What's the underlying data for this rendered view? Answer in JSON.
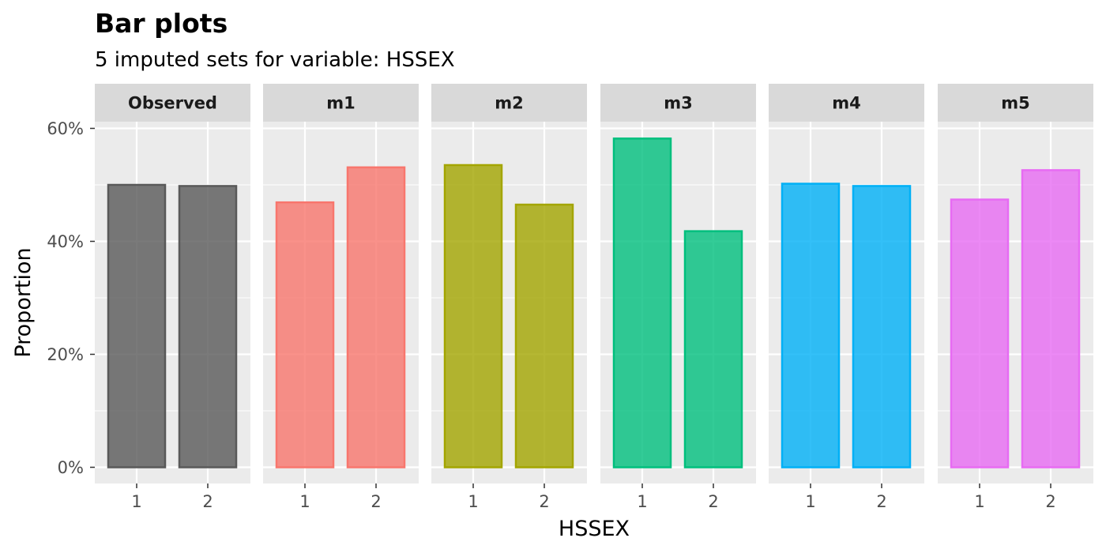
{
  "chart_data": {
    "type": "bar",
    "title": "Bar plots",
    "subtitle": "5  imputed sets for variable:  HSSEX",
    "xlabel": "HSSEX",
    "ylabel": "Proportion",
    "ylim": [
      0,
      0.6
    ],
    "y_ticks": [
      0,
      0.2,
      0.4,
      0.6
    ],
    "y_tick_labels": [
      "0%",
      "20%",
      "40%",
      "60%"
    ],
    "categories": [
      "1",
      "2"
    ],
    "grid": true,
    "facets": [
      {
        "name": "Observed",
        "values": [
          0.5,
          0.498
        ],
        "color": "#595959"
      },
      {
        "name": "m1",
        "values": [
          0.469,
          0.531
        ],
        "color": "#F8766D"
      },
      {
        "name": "m2",
        "values": [
          0.535,
          0.465
        ],
        "color": "#A3A500"
      },
      {
        "name": "m3",
        "values": [
          0.582,
          0.418
        ],
        "color": "#00BF7D"
      },
      {
        "name": "m4",
        "values": [
          0.502,
          0.498
        ],
        "color": "#00B0F6"
      },
      {
        "name": "m5",
        "values": [
          0.474,
          0.526
        ],
        "color": "#E76BF3"
      }
    ]
  }
}
